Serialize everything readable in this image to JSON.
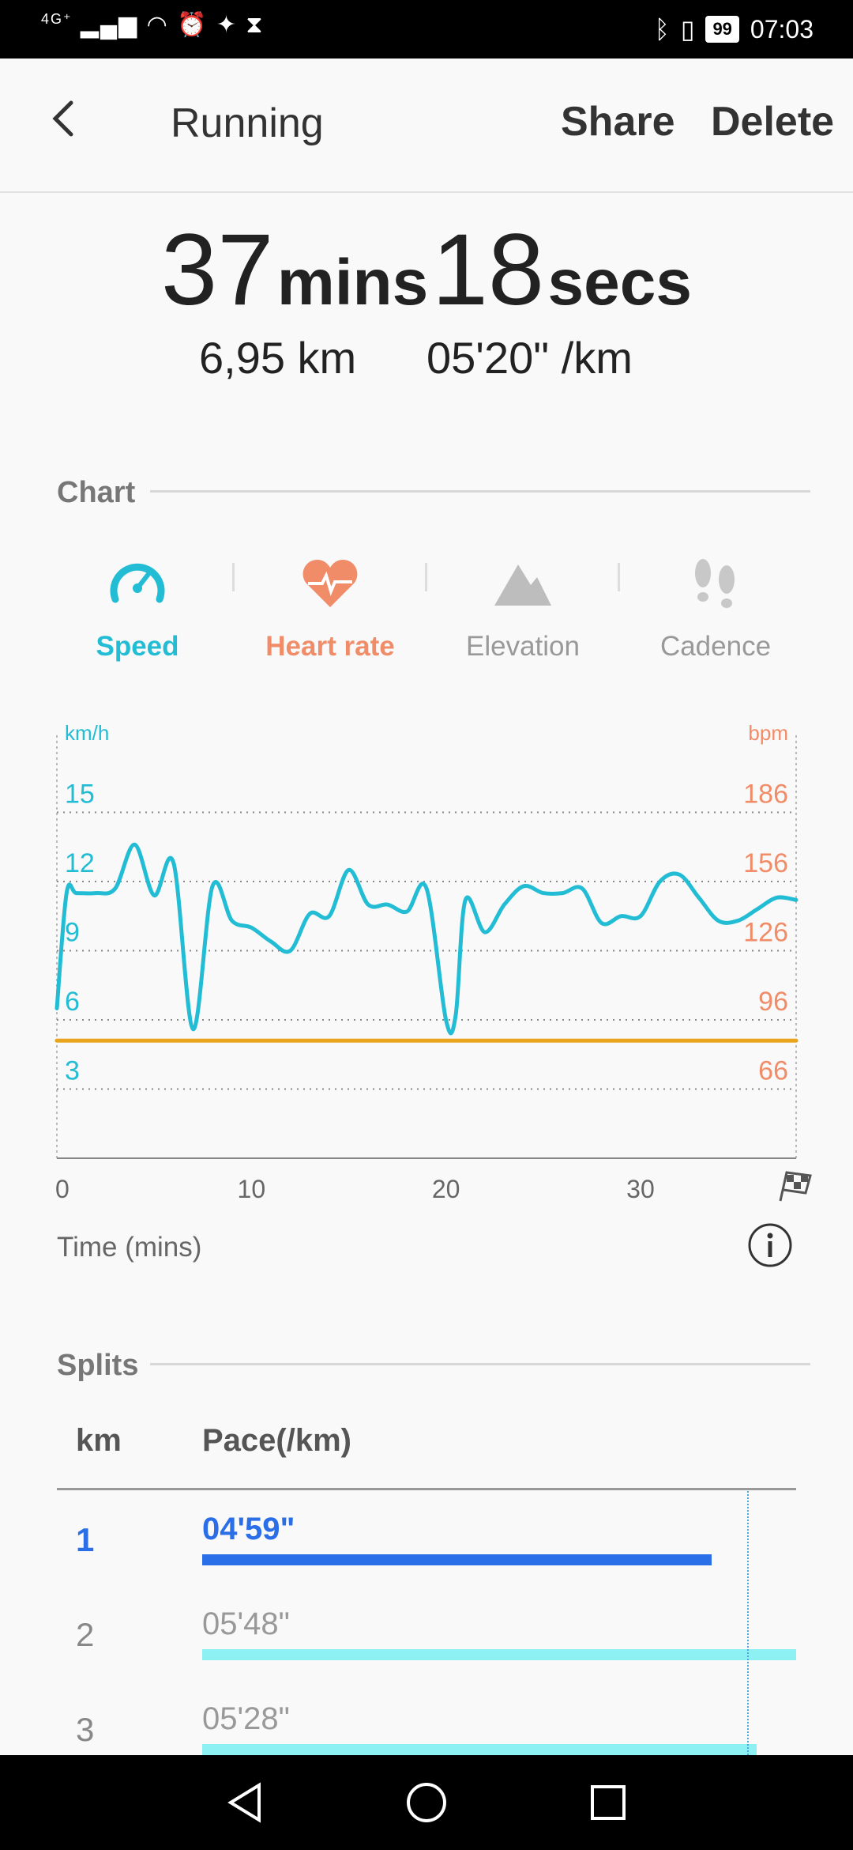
{
  "status_bar": {
    "network": "4G⁺",
    "battery": "99",
    "time": "07:03"
  },
  "app_bar": {
    "title": "Running",
    "share_label": "Share",
    "delete_label": "Delete"
  },
  "summary": {
    "duration_mins": "37",
    "mins_unit": "mins",
    "duration_secs": "18",
    "secs_unit": "secs",
    "distance": "6,95 km",
    "pace": "05'20\" /km"
  },
  "chart_section": {
    "title": "Chart",
    "tabs": [
      {
        "label": "Speed",
        "icon": "speedometer-icon",
        "color": "#22bdd4"
      },
      {
        "label": "Heart rate",
        "icon": "heart-pulse-icon",
        "color": "#f08c68"
      },
      {
        "label": "Elevation",
        "icon": "mountain-icon",
        "color": "#999999"
      },
      {
        "label": "Cadence",
        "icon": "footsteps-icon",
        "color": "#999999"
      }
    ],
    "time_label": "Time (mins)"
  },
  "chart_data": {
    "type": "line",
    "xlabel": "Time (mins)",
    "ylabel": "km/h",
    "y2label": "bpm",
    "xlim": [
      0,
      38
    ],
    "ylim": [
      0,
      18
    ],
    "x_ticks": [
      "0",
      "10",
      "20",
      "30"
    ],
    "y_ticks": [
      "15",
      "12",
      "9",
      "6",
      "3"
    ],
    "y2_ticks": [
      "186",
      "156",
      "126",
      "96",
      "66"
    ],
    "grid": true,
    "series": [
      {
        "name": "Speed",
        "color": "#22bdd4",
        "x": [
          0,
          0.5,
          1,
          2,
          3,
          4,
          5,
          6,
          7,
          8,
          9,
          10,
          11,
          12,
          13,
          14,
          15,
          16,
          17,
          18,
          19,
          20,
          20.5,
          21,
          22,
          23,
          24,
          25,
          26,
          27,
          28,
          29,
          30,
          31,
          32,
          33,
          34,
          35,
          36,
          37,
          38
        ],
        "values": [
          6.5,
          11.5,
          11.5,
          11.5,
          11.7,
          13.6,
          11.4,
          12.8,
          5.6,
          11.8,
          10.3,
          10,
          9.4,
          9,
          10.6,
          10.5,
          12.5,
          11,
          11,
          10.7,
          11.7,
          6,
          6.2,
          11.2,
          9.8,
          11,
          11.8,
          11.5,
          11.5,
          11.7,
          10.2,
          10.5,
          10.5,
          12,
          12.3,
          11.3,
          10.3,
          10.3,
          10.8,
          11.3,
          11.2
        ]
      },
      {
        "name": "Heart rate",
        "color": "#e8a41c",
        "x": [
          0,
          38
        ],
        "values": [
          5.1,
          5.1
        ]
      }
    ]
  },
  "splits_section": {
    "title": "Splits",
    "col_km": "km",
    "col_pace": "Pace(/km)",
    "rows": [
      {
        "km": "1",
        "pace": "04'59\"",
        "fraction": 0.78
      },
      {
        "km": "2",
        "pace": "05'48\"",
        "fraction": 0.91
      },
      {
        "km": "3",
        "pace": "05'28\"",
        "fraction": 0.85
      }
    ],
    "average_fraction": 0.835
  }
}
